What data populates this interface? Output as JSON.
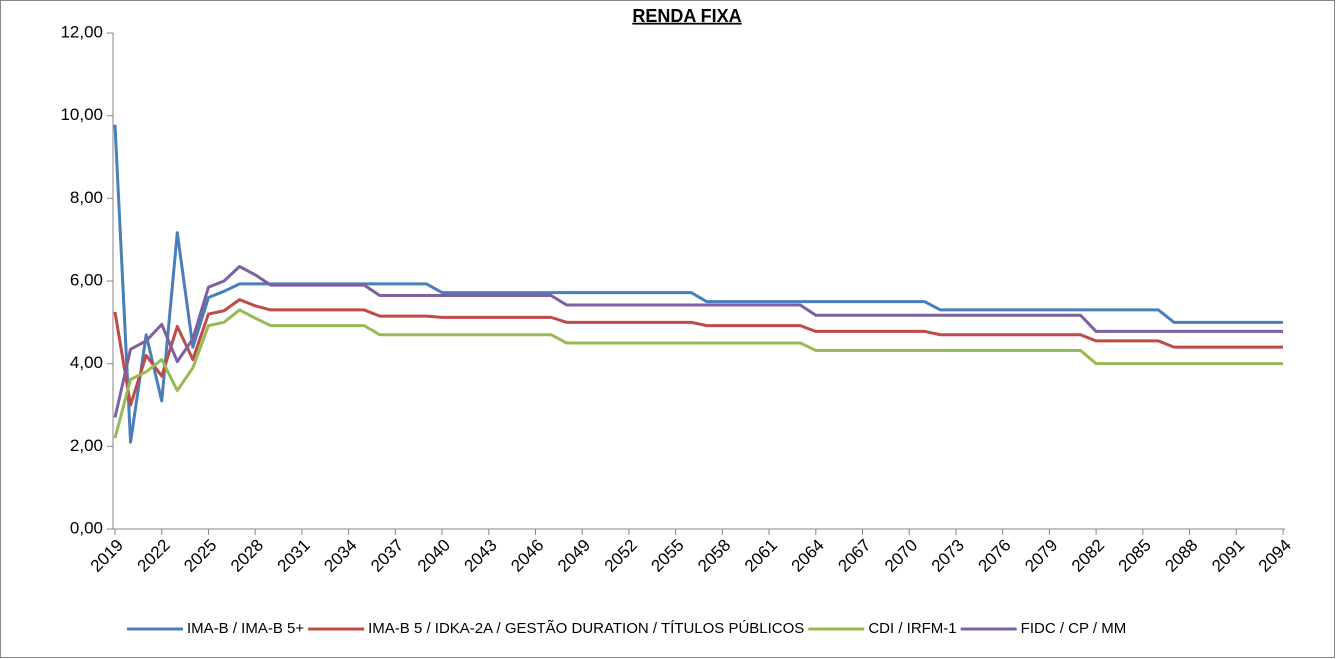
{
  "chart_data": {
    "type": "line",
    "title": "RENDA FIXA",
    "x": [
      2019,
      2020,
      2021,
      2022,
      2023,
      2024,
      2025,
      2026,
      2027,
      2028,
      2029,
      2030,
      2031,
      2032,
      2033,
      2034,
      2035,
      2036,
      2037,
      2038,
      2039,
      2040,
      2041,
      2042,
      2043,
      2044,
      2045,
      2046,
      2047,
      2048,
      2049,
      2050,
      2051,
      2052,
      2053,
      2054,
      2055,
      2056,
      2057,
      2058,
      2059,
      2060,
      2061,
      2062,
      2063,
      2064,
      2065,
      2066,
      2067,
      2068,
      2069,
      2070,
      2071,
      2072,
      2073,
      2074,
      2075,
      2076,
      2077,
      2078,
      2079,
      2080,
      2081,
      2082,
      2083,
      2084,
      2085,
      2086,
      2087,
      2088,
      2089,
      2090,
      2091,
      2092,
      2093,
      2094
    ],
    "xlim": [
      2019,
      2094
    ],
    "xticks": [
      2019,
      2022,
      2025,
      2028,
      2031,
      2034,
      2037,
      2040,
      2043,
      2046,
      2049,
      2052,
      2055,
      2058,
      2061,
      2064,
      2067,
      2070,
      2073,
      2076,
      2079,
      2082,
      2085,
      2088,
      2091,
      2094
    ],
    "ylim": [
      0,
      12
    ],
    "yticks": [
      {
        "value": 0,
        "label": "0,00"
      },
      {
        "value": 2,
        "label": "2,00"
      },
      {
        "value": 4,
        "label": "4,00"
      },
      {
        "value": 6,
        "label": "6,00"
      },
      {
        "value": 8,
        "label": "8,00"
      },
      {
        "value": 10,
        "label": "10,00"
      },
      {
        "value": 12,
        "label": "12,00"
      }
    ],
    "grid": false,
    "legend": "bottom",
    "series": [
      {
        "name": "IMA-B / IMA-B 5+",
        "color": "#4a7ebb",
        "values": [
          9.78,
          2.1,
          4.7,
          3.1,
          7.17,
          4.4,
          5.6,
          5.75,
          5.93,
          5.93,
          5.93,
          5.93,
          5.93,
          5.93,
          5.93,
          5.93,
          5.93,
          5.93,
          5.93,
          5.93,
          5.93,
          5.72,
          5.72,
          5.72,
          5.72,
          5.72,
          5.72,
          5.72,
          5.72,
          5.72,
          5.72,
          5.72,
          5.72,
          5.72,
          5.72,
          5.72,
          5.72,
          5.72,
          5.5,
          5.5,
          5.5,
          5.5,
          5.5,
          5.5,
          5.5,
          5.5,
          5.5,
          5.5,
          5.5,
          5.5,
          5.5,
          5.5,
          5.5,
          5.3,
          5.3,
          5.3,
          5.3,
          5.3,
          5.3,
          5.3,
          5.3,
          5.3,
          5.3,
          5.3,
          5.3,
          5.3,
          5.3,
          5.3,
          5.0,
          5.0,
          5.0,
          5.0,
          5.0,
          5.0,
          5.0,
          5.0
        ]
      },
      {
        "name": "IMA-B 5 / IDKA-2A / GESTÃO DURATION / TÍTULOS PÚBLICOS",
        "color": "#be4b48",
        "values": [
          5.25,
          3.0,
          4.2,
          3.7,
          4.9,
          4.1,
          5.2,
          5.28,
          5.55,
          5.4,
          5.3,
          5.3,
          5.3,
          5.3,
          5.3,
          5.3,
          5.3,
          5.15,
          5.15,
          5.15,
          5.15,
          5.12,
          5.12,
          5.12,
          5.12,
          5.12,
          5.12,
          5.12,
          5.12,
          5.0,
          5.0,
          5.0,
          5.0,
          5.0,
          5.0,
          5.0,
          5.0,
          5.0,
          4.92,
          4.92,
          4.92,
          4.92,
          4.92,
          4.92,
          4.92,
          4.78,
          4.78,
          4.78,
          4.78,
          4.78,
          4.78,
          4.78,
          4.78,
          4.7,
          4.7,
          4.7,
          4.7,
          4.7,
          4.7,
          4.7,
          4.7,
          4.7,
          4.7,
          4.55,
          4.55,
          4.55,
          4.55,
          4.55,
          4.4,
          4.4,
          4.4,
          4.4,
          4.4,
          4.4,
          4.4,
          4.4
        ]
      },
      {
        "name": "CDI / IRFM-1",
        "color": "#98b954",
        "values": [
          2.2,
          3.62,
          3.8,
          4.1,
          3.35,
          3.9,
          4.92,
          5.0,
          5.3,
          5.1,
          4.92,
          4.92,
          4.92,
          4.92,
          4.92,
          4.92,
          4.92,
          4.7,
          4.7,
          4.7,
          4.7,
          4.7,
          4.7,
          4.7,
          4.7,
          4.7,
          4.7,
          4.7,
          4.7,
          4.5,
          4.5,
          4.5,
          4.5,
          4.5,
          4.5,
          4.5,
          4.5,
          4.5,
          4.5,
          4.5,
          4.5,
          4.5,
          4.5,
          4.5,
          4.5,
          4.32,
          4.32,
          4.32,
          4.32,
          4.32,
          4.32,
          4.32,
          4.32,
          4.32,
          4.32,
          4.32,
          4.32,
          4.32,
          4.32,
          4.32,
          4.32,
          4.32,
          4.32,
          4.0,
          4.0,
          4.0,
          4.0,
          4.0,
          4.0,
          4.0,
          4.0,
          4.0,
          4.0,
          4.0,
          4.0,
          4.0
        ]
      },
      {
        "name": "FIDC / CP / MM",
        "color": "#7d60a0",
        "values": [
          2.7,
          4.35,
          4.55,
          4.95,
          4.05,
          4.6,
          5.85,
          6.0,
          6.35,
          6.15,
          5.9,
          5.9,
          5.9,
          5.9,
          5.9,
          5.9,
          5.9,
          5.65,
          5.65,
          5.65,
          5.65,
          5.65,
          5.65,
          5.65,
          5.65,
          5.65,
          5.65,
          5.65,
          5.65,
          5.42,
          5.42,
          5.42,
          5.42,
          5.42,
          5.42,
          5.42,
          5.42,
          5.42,
          5.42,
          5.42,
          5.42,
          5.42,
          5.42,
          5.42,
          5.42,
          5.17,
          5.17,
          5.17,
          5.17,
          5.17,
          5.17,
          5.17,
          5.17,
          5.17,
          5.17,
          5.17,
          5.17,
          5.17,
          5.17,
          5.17,
          5.17,
          5.17,
          5.17,
          4.78,
          4.78,
          4.78,
          4.78,
          4.78,
          4.78,
          4.78,
          4.78,
          4.78,
          4.78,
          4.78,
          4.78,
          4.78
        ]
      }
    ]
  }
}
